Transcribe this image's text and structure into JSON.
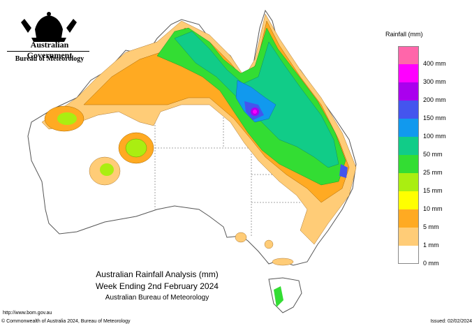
{
  "header": {
    "government": "Australian Government",
    "bureau": "Bureau of Meteorology",
    "crest": "australian-coat-of-arms"
  },
  "legend": {
    "title": "Rainfall (mm)",
    "items": [
      {
        "label": "",
        "color": "#ff66aa"
      },
      {
        "label": "400 mm",
        "color": "#ff00ff"
      },
      {
        "label": "300 mm",
        "color": "#aa00ee"
      },
      {
        "label": "200 mm",
        "color": "#4455ee"
      },
      {
        "label": "150 mm",
        "color": "#1199ee"
      },
      {
        "label": "100 mm",
        "color": "#11cc88"
      },
      {
        "label": "50 mm",
        "color": "#33dd33"
      },
      {
        "label": "25 mm",
        "color": "#aaee11"
      },
      {
        "label": "15 mm",
        "color": "#ffff00"
      },
      {
        "label": "10 mm",
        "color": "#ffaa22"
      },
      {
        "label": "5 mm",
        "color": "#ffcc77"
      },
      {
        "label": "1 mm",
        "color": "#ffffff"
      },
      {
        "label": "0 mm",
        "color": ""
      }
    ]
  },
  "title": {
    "line1": "Australian Rainfall Analysis (mm)",
    "line2": "Week Ending 2nd February 2024",
    "line3": "Australian Bureau of Meteorology"
  },
  "footer": {
    "url": "http://www.bom.gov.au",
    "copyright": "© Commonwealth of Australia 2024, Bureau of Meteorology",
    "issued": "Issued: 02/02/2024"
  },
  "map": {
    "region": "Australia",
    "background_color": "#ffffff",
    "land_color": "#ffffff",
    "outline_color": "#555555"
  }
}
